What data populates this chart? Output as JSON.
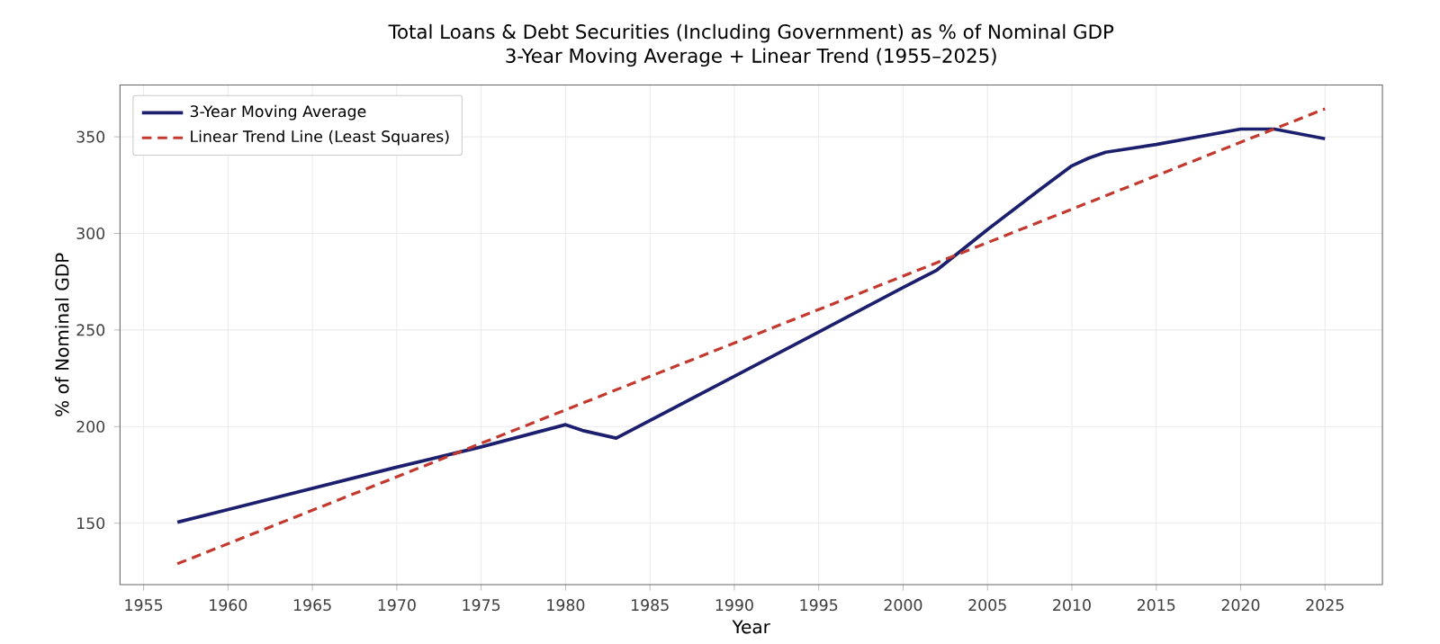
{
  "chart_data": {
    "type": "line",
    "title": "Total Loans & Debt Securities (Including Government) as % of Nominal GDP",
    "subtitle": "3-Year Moving Average + Linear Trend (1955–2025)",
    "xlabel": "Year",
    "ylabel": "% of Nominal GDP",
    "xlim": [
      1953.6,
      2028.4
    ],
    "ylim": [
      118.2,
      376.8
    ],
    "xticks": [
      1955,
      1960,
      1965,
      1970,
      1975,
      1980,
      1985,
      1990,
      1995,
      2000,
      2005,
      2010,
      2015,
      2020,
      2025
    ],
    "yticks": [
      150,
      200,
      250,
      300,
      350
    ],
    "grid": true,
    "legend": "top left",
    "series": [
      {
        "name": "3-Year Moving Average",
        "color": "#1c1f6e",
        "line_style": "solid",
        "x": [
          1957,
          1970,
          1975,
          1980,
          1981,
          1983,
          1990,
          1995,
          2000,
          2002,
          2005,
          2008,
          2010,
          2011,
          2012,
          2015,
          2020,
          2022,
          2025
        ],
        "values": [
          150.5,
          179,
          189.5,
          201,
          198,
          194,
          226,
          249,
          272,
          281,
          302,
          322,
          335,
          339,
          342,
          346,
          354,
          354,
          349
        ]
      },
      {
        "name": "Linear Trend Line (Least Squares)",
        "color": "#c4392e",
        "line_style": "dashed",
        "x": [
          1957,
          2025
        ],
        "values": [
          129,
          364.5
        ]
      }
    ]
  }
}
